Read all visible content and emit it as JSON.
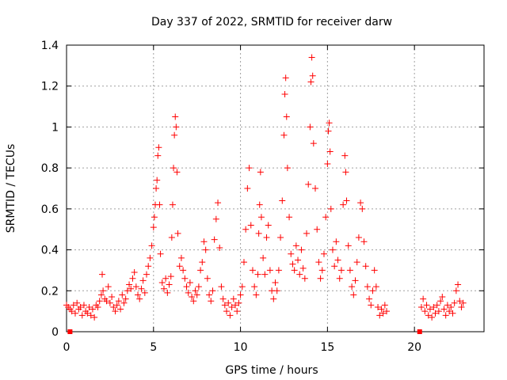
{
  "chart_data": {
    "type": "scatter",
    "title": "Day 337 of 2022, SRMTID for receiver darw",
    "xlabel": "GPS time / hours",
    "ylabel": "SRMTID / TECUs",
    "xlim": [
      0,
      24
    ],
    "ylim": [
      0,
      1.4
    ],
    "xticks": [
      0,
      5,
      10,
      15,
      20
    ],
    "xtick_labels": [
      "0",
      "5",
      "10",
      "15",
      "20"
    ],
    "yticks": [
      0,
      0.2,
      0.4,
      0.6,
      0.8,
      1,
      1.2,
      1.4
    ],
    "ytick_labels": [
      "0",
      "0.2",
      "0.4",
      "0.6",
      "0.8",
      "1",
      "1.2",
      "1.4"
    ],
    "grid": true,
    "marker": "plus",
    "color": "#ff0000",
    "series": [
      {
        "name": "SRMTID",
        "points": [
          [
            0.0,
            0.13
          ],
          [
            0.1,
            0.12
          ],
          [
            0.2,
            0.11
          ],
          [
            0.3,
            0.1
          ],
          [
            0.4,
            0.13
          ],
          [
            0.5,
            0.09
          ],
          [
            0.6,
            0.14
          ],
          [
            0.7,
            0.11
          ],
          [
            0.8,
            0.12
          ],
          [
            0.9,
            0.08
          ],
          [
            1.0,
            0.13
          ],
          [
            1.1,
            0.1
          ],
          [
            1.2,
            0.09
          ],
          [
            1.3,
            0.12
          ],
          [
            1.4,
            0.08
          ],
          [
            1.5,
            0.11
          ],
          [
            1.6,
            0.07
          ],
          [
            1.7,
            0.13
          ],
          [
            1.8,
            0.12
          ],
          [
            1.9,
            0.15
          ],
          [
            2.0,
            0.18
          ],
          [
            2.05,
            0.28
          ],
          [
            2.1,
            0.2
          ],
          [
            2.2,
            0.16
          ],
          [
            2.3,
            0.15
          ],
          [
            2.4,
            0.22
          ],
          [
            2.5,
            0.14
          ],
          [
            2.6,
            0.17
          ],
          [
            2.7,
            0.12
          ],
          [
            2.8,
            0.1
          ],
          [
            2.9,
            0.13
          ],
          [
            3.0,
            0.15
          ],
          [
            3.1,
            0.11
          ],
          [
            3.2,
            0.18
          ],
          [
            3.3,
            0.14
          ],
          [
            3.4,
            0.16
          ],
          [
            3.5,
            0.2
          ],
          [
            3.6,
            0.23
          ],
          [
            3.7,
            0.21
          ],
          [
            3.8,
            0.26
          ],
          [
            3.9,
            0.29
          ],
          [
            4.0,
            0.22
          ],
          [
            4.1,
            0.18
          ],
          [
            4.2,
            0.16
          ],
          [
            4.3,
            0.21
          ],
          [
            4.4,
            0.25
          ],
          [
            4.5,
            0.19
          ],
          [
            4.6,
            0.28
          ],
          [
            4.7,
            0.32
          ],
          [
            4.8,
            0.36
          ],
          [
            4.9,
            0.42
          ],
          [
            5.0,
            0.51
          ],
          [
            5.05,
            0.56
          ],
          [
            5.1,
            0.62
          ],
          [
            5.15,
            0.7
          ],
          [
            5.2,
            0.74
          ],
          [
            5.25,
            0.86
          ],
          [
            5.3,
            0.9
          ],
          [
            5.35,
            0.62
          ],
          [
            5.4,
            0.38
          ],
          [
            5.5,
            0.24
          ],
          [
            5.6,
            0.21
          ],
          [
            5.7,
            0.26
          ],
          [
            5.8,
            0.19
          ],
          [
            5.9,
            0.23
          ],
          [
            6.0,
            0.27
          ],
          [
            6.05,
            0.46
          ],
          [
            6.1,
            0.62
          ],
          [
            6.15,
            0.8
          ],
          [
            6.2,
            0.96
          ],
          [
            6.25,
            1.05
          ],
          [
            6.3,
            1.0
          ],
          [
            6.35,
            0.78
          ],
          [
            6.4,
            0.48
          ],
          [
            6.5,
            0.32
          ],
          [
            6.6,
            0.36
          ],
          [
            6.7,
            0.3
          ],
          [
            6.8,
            0.26
          ],
          [
            6.9,
            0.22
          ],
          [
            7.0,
            0.19
          ],
          [
            7.1,
            0.24
          ],
          [
            7.2,
            0.17
          ],
          [
            7.3,
            0.15
          ],
          [
            7.4,
            0.2
          ],
          [
            7.5,
            0.18
          ],
          [
            7.6,
            0.22
          ],
          [
            7.7,
            0.3
          ],
          [
            7.8,
            0.34
          ],
          [
            7.9,
            0.44
          ],
          [
            8.0,
            0.4
          ],
          [
            8.1,
            0.26
          ],
          [
            8.2,
            0.18
          ],
          [
            8.3,
            0.15
          ],
          [
            8.4,
            0.2
          ],
          [
            8.5,
            0.45
          ],
          [
            8.6,
            0.55
          ],
          [
            8.7,
            0.63
          ],
          [
            8.8,
            0.41
          ],
          [
            8.9,
            0.22
          ],
          [
            9.0,
            0.16
          ],
          [
            9.1,
            0.13
          ],
          [
            9.2,
            0.1
          ],
          [
            9.3,
            0.14
          ],
          [
            9.4,
            0.08
          ],
          [
            9.5,
            0.12
          ],
          [
            9.6,
            0.16
          ],
          [
            9.7,
            0.13
          ],
          [
            9.8,
            0.1
          ],
          [
            9.9,
            0.14
          ],
          [
            10.0,
            0.18
          ],
          [
            10.1,
            0.22
          ],
          [
            10.2,
            0.34
          ],
          [
            10.3,
            0.5
          ],
          [
            10.4,
            0.7
          ],
          [
            10.5,
            0.8
          ],
          [
            10.6,
            0.52
          ],
          [
            10.7,
            0.3
          ],
          [
            10.8,
            0.22
          ],
          [
            10.9,
            0.18
          ],
          [
            11.0,
            0.28
          ],
          [
            11.05,
            0.48
          ],
          [
            11.1,
            0.62
          ],
          [
            11.15,
            0.78
          ],
          [
            11.2,
            0.56
          ],
          [
            11.3,
            0.36
          ],
          [
            11.4,
            0.28
          ],
          [
            11.5,
            0.46
          ],
          [
            11.6,
            0.52
          ],
          [
            11.7,
            0.3
          ],
          [
            11.8,
            0.2
          ],
          [
            11.9,
            0.16
          ],
          [
            12.0,
            0.24
          ],
          [
            12.1,
            0.2
          ],
          [
            12.2,
            0.3
          ],
          [
            12.3,
            0.46
          ],
          [
            12.4,
            0.64
          ],
          [
            12.5,
            0.96
          ],
          [
            12.55,
            1.16
          ],
          [
            12.6,
            1.24
          ],
          [
            12.65,
            1.05
          ],
          [
            12.7,
            0.8
          ],
          [
            12.8,
            0.56
          ],
          [
            12.9,
            0.38
          ],
          [
            13.0,
            0.33
          ],
          [
            13.1,
            0.3
          ],
          [
            13.2,
            0.42
          ],
          [
            13.3,
            0.35
          ],
          [
            13.4,
            0.28
          ],
          [
            13.5,
            0.4
          ],
          [
            13.6,
            0.31
          ],
          [
            13.7,
            0.26
          ],
          [
            13.8,
            0.48
          ],
          [
            13.9,
            0.72
          ],
          [
            14.0,
            1.0
          ],
          [
            14.05,
            1.22
          ],
          [
            14.1,
            1.34
          ],
          [
            14.15,
            1.25
          ],
          [
            14.2,
            0.92
          ],
          [
            14.3,
            0.7
          ],
          [
            14.4,
            0.5
          ],
          [
            14.5,
            0.34
          ],
          [
            14.6,
            0.26
          ],
          [
            14.7,
            0.3
          ],
          [
            14.8,
            0.38
          ],
          [
            14.9,
            0.56
          ],
          [
            15.0,
            0.82
          ],
          [
            15.05,
            0.98
          ],
          [
            15.1,
            1.02
          ],
          [
            15.15,
            0.88
          ],
          [
            15.2,
            0.6
          ],
          [
            15.3,
            0.4
          ],
          [
            15.4,
            0.32
          ],
          [
            15.5,
            0.44
          ],
          [
            15.6,
            0.35
          ],
          [
            15.7,
            0.26
          ],
          [
            15.8,
            0.3
          ],
          [
            15.9,
            0.62
          ],
          [
            16.0,
            0.86
          ],
          [
            16.05,
            0.78
          ],
          [
            16.1,
            0.64
          ],
          [
            16.2,
            0.42
          ],
          [
            16.3,
            0.3
          ],
          [
            16.4,
            0.22
          ],
          [
            16.5,
            0.18
          ],
          [
            16.6,
            0.25
          ],
          [
            16.7,
            0.34
          ],
          [
            16.8,
            0.46
          ],
          [
            16.9,
            0.63
          ],
          [
            17.0,
            0.6
          ],
          [
            17.1,
            0.44
          ],
          [
            17.2,
            0.32
          ],
          [
            17.3,
            0.22
          ],
          [
            17.4,
            0.16
          ],
          [
            17.5,
            0.13
          ],
          [
            17.6,
            0.2
          ],
          [
            17.7,
            0.3
          ],
          [
            17.8,
            0.22
          ],
          [
            17.9,
            0.12
          ],
          [
            18.0,
            0.08
          ],
          [
            18.1,
            0.11
          ],
          [
            18.2,
            0.09
          ],
          [
            18.3,
            0.13
          ],
          [
            18.4,
            0.1
          ],
          [
            20.4,
            0.12
          ],
          [
            20.5,
            0.16
          ],
          [
            20.6,
            0.1
          ],
          [
            20.7,
            0.13
          ],
          [
            20.8,
            0.08
          ],
          [
            20.9,
            0.11
          ],
          [
            21.0,
            0.07
          ],
          [
            21.1,
            0.12
          ],
          [
            21.2,
            0.09
          ],
          [
            21.3,
            0.13
          ],
          [
            21.4,
            0.1
          ],
          [
            21.5,
            0.15
          ],
          [
            21.6,
            0.17
          ],
          [
            21.7,
            0.11
          ],
          [
            21.8,
            0.08
          ],
          [
            21.9,
            0.13
          ],
          [
            22.0,
            0.1
          ],
          [
            22.1,
            0.12
          ],
          [
            22.2,
            0.09
          ],
          [
            22.3,
            0.14
          ],
          [
            22.4,
            0.2
          ],
          [
            22.5,
            0.23
          ],
          [
            22.6,
            0.15
          ],
          [
            22.7,
            0.12
          ],
          [
            22.8,
            0.14
          ]
        ]
      },
      {
        "name": "markers",
        "points": [
          [
            0.2,
            0.0
          ],
          [
            20.3,
            0.0
          ]
        ]
      }
    ]
  }
}
